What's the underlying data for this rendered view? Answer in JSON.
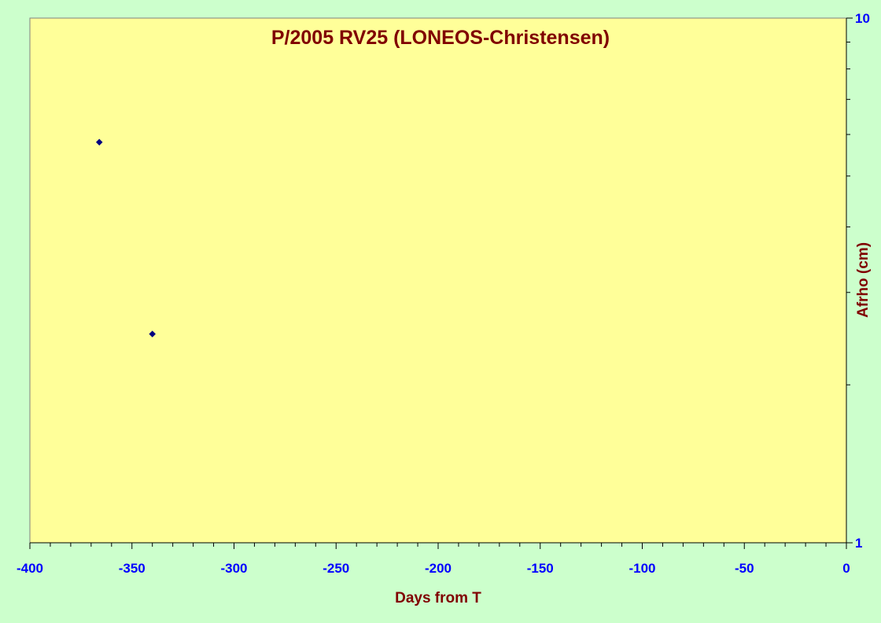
{
  "chart_data": {
    "type": "scatter",
    "title": "P/2005 RV25 (LONEOS-Christensen)",
    "xlabel": "Days from T",
    "ylabel": "Afrho (cm)",
    "xlim": [
      -400,
      0
    ],
    "ylim": [
      1,
      10
    ],
    "y_scale": "log",
    "y_axis_side": "right",
    "grid": false,
    "legend": "none",
    "x_ticks": [
      "-400",
      "-350",
      "-300",
      "-250",
      "-200",
      "-150",
      "-100",
      "-50",
      "0"
    ],
    "y_ticks": [
      "1",
      "10"
    ],
    "series": [
      {
        "marker": "diamond",
        "points": [
          {
            "x": -366,
            "y": 5.8
          },
          {
            "x": -340,
            "y": 2.5
          }
        ]
      }
    ]
  },
  "colors": {
    "background": "#ccffcc",
    "plot_area": "#ffff99",
    "title": "#800000",
    "tick_labels": "#0000ff",
    "marker": "#000080"
  }
}
